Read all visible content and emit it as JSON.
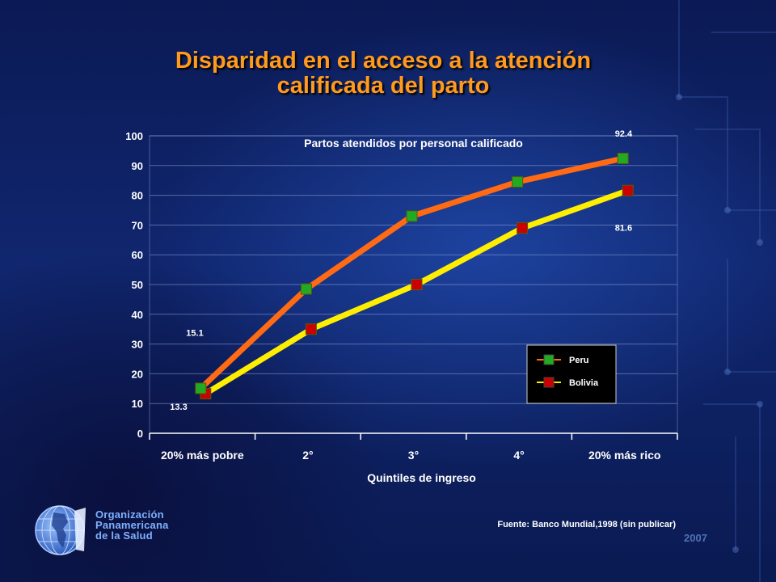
{
  "title_line1": "Disparidad en el acceso a la atención",
  "title_line2": "calificada del parto",
  "organization": {
    "line1": "Organización",
    "line2": "Panamericana",
    "line3": "de la Salud"
  },
  "year": "2007",
  "colors": {
    "title": "#ff9a1e",
    "peru_line": "#ff6a13",
    "bolivia_line": "#ffee00",
    "peru_marker": "#22aa22",
    "bolivia_marker": "#cc0000"
  },
  "chart_data": {
    "type": "line",
    "title": "Partos atendidos por personal calificado",
    "xlabel": "Quintiles de ingreso",
    "ylabel": "",
    "categories": [
      "20% más pobre",
      "2°",
      "3°",
      "4°",
      "20% más rico"
    ],
    "ylim": [
      0,
      100
    ],
    "yticks": [
      0,
      10,
      20,
      30,
      40,
      50,
      60,
      70,
      80,
      90,
      100
    ],
    "grid": true,
    "legend_position": "bottom-right",
    "series": [
      {
        "name": "Peru",
        "values": [
          15.1,
          48.5,
          73,
          84.5,
          92.4
        ]
      },
      {
        "name": "Bolivia",
        "values": [
          13.3,
          35,
          50,
          69,
          81.6
        ]
      }
    ],
    "annotations": [
      {
        "text": "92.4",
        "series": "Peru",
        "index": 4
      },
      {
        "text": "81.6",
        "series": "Bolivia",
        "index": 4
      },
      {
        "text": "15.1",
        "series": "Peru",
        "index": 0
      },
      {
        "text": "13.3",
        "series": "Bolivia",
        "index": 0
      }
    ],
    "source": "Fuente: Banco Mundial,1998 (sin publicar)"
  }
}
